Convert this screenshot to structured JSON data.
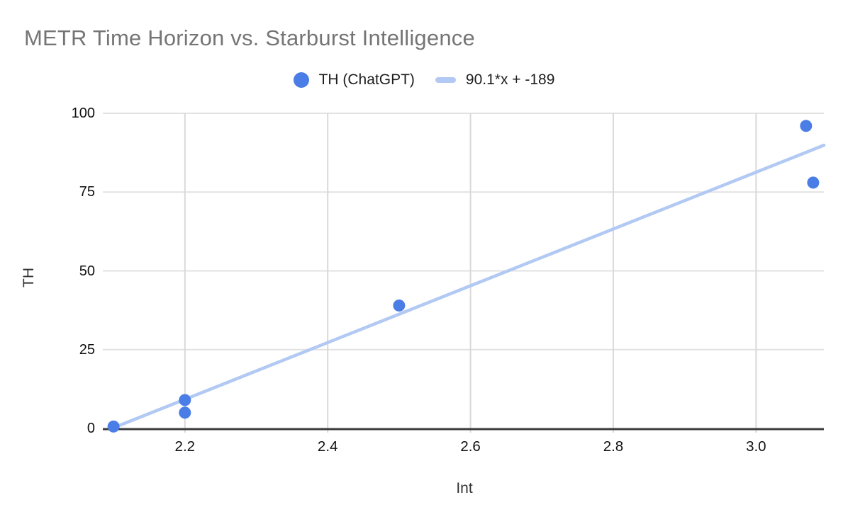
{
  "title": "METR Time Horizon vs. Starburst Intelligence",
  "chart_data": {
    "type": "scatter",
    "title": "METR Time Horizon vs. Starburst Intelligence",
    "xlabel": "Int",
    "ylabel": "TH",
    "xlim": [
      2.085,
      3.095
    ],
    "ylim": [
      0,
      100
    ],
    "grid": true,
    "legend_position": "top",
    "x_ticks": [
      {
        "value": 2.2,
        "label": "2.2"
      },
      {
        "value": 2.4,
        "label": "2.4"
      },
      {
        "value": 2.6,
        "label": "2.6"
      },
      {
        "value": 2.8,
        "label": "2.8"
      },
      {
        "value": 3.0,
        "label": "3.0"
      }
    ],
    "y_ticks": [
      {
        "value": 0,
        "label": "0"
      },
      {
        "value": 25,
        "label": "25"
      },
      {
        "value": 50,
        "label": "50"
      },
      {
        "value": 75,
        "label": "75"
      },
      {
        "value": 100,
        "label": "100"
      }
    ],
    "series": [
      {
        "name": "TH (ChatGPT)",
        "color": "#4a7de5",
        "points": [
          {
            "x": 2.1,
            "y": 0.6
          },
          {
            "x": 2.2,
            "y": 5
          },
          {
            "x": 2.2,
            "y": 9
          },
          {
            "x": 2.5,
            "y": 39
          },
          {
            "x": 3.07,
            "y": 96
          },
          {
            "x": 3.08,
            "y": 78
          }
        ]
      }
    ],
    "trendline": {
      "label": "90.1*x + -189",
      "slope": 90.1,
      "intercept": -189,
      "color": "#b1c9f3"
    }
  }
}
